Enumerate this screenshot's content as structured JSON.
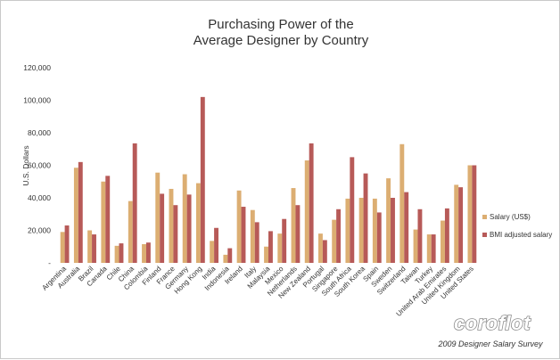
{
  "chart_data": {
    "type": "bar",
    "title": [
      "Purchasing Power of the",
      "Average Designer by Country"
    ],
    "ylabel": "U.S. Dollars",
    "ylim": [
      0,
      120000
    ],
    "yticks": [
      0,
      20000,
      40000,
      60000,
      80000,
      100000,
      120000
    ],
    "ytick_labels": [
      "-",
      "20,000",
      "40,000",
      "60,000",
      "80,000",
      "100,000",
      "120,000"
    ],
    "grid": false,
    "legend_position": "right",
    "categories": [
      "Argentina",
      "Australia",
      "Brazil",
      "Canada",
      "Chile",
      "China",
      "Colombia",
      "Finland",
      "France",
      "Germany",
      "Hong Kong",
      "India",
      "Indonesia",
      "Ireland",
      "Italy",
      "Malaysia",
      "Mexico",
      "Netherlands",
      "New Zealand",
      "Portugal",
      "Singapore",
      "South Africa",
      "South Korea",
      "Spain",
      "Sweden",
      "Switzerland",
      "Taiwan",
      "Turkey",
      "United Arab Emirates",
      "United Kingdom",
      "United States"
    ],
    "series": [
      {
        "name": "Salary (US$)",
        "color": "#dcae72",
        "values": [
          19000,
          58500,
          20000,
          50000,
          10500,
          38000,
          11500,
          55500,
          45500,
          54500,
          49000,
          13500,
          5000,
          44500,
          32500,
          10000,
          18000,
          46000,
          63000,
          18000,
          26500,
          39500,
          40000,
          39500,
          52000,
          73000,
          20500,
          17500,
          26000,
          48000,
          60000
        ]
      },
      {
        "name": "BMI adjusted salary",
        "color": "#b75a58",
        "values": [
          23000,
          62000,
          17500,
          53500,
          12000,
          73500,
          12500,
          42500,
          35500,
          42000,
          102000,
          21500,
          9000,
          34500,
          25000,
          19500,
          27000,
          35500,
          73500,
          14000,
          33000,
          65000,
          55000,
          31000,
          40000,
          43500,
          33000,
          17500,
          33500,
          46500,
          60000
        ]
      }
    ]
  },
  "branding": {
    "logo": "coroflot",
    "caption": "2009 Designer Salary Survey"
  }
}
